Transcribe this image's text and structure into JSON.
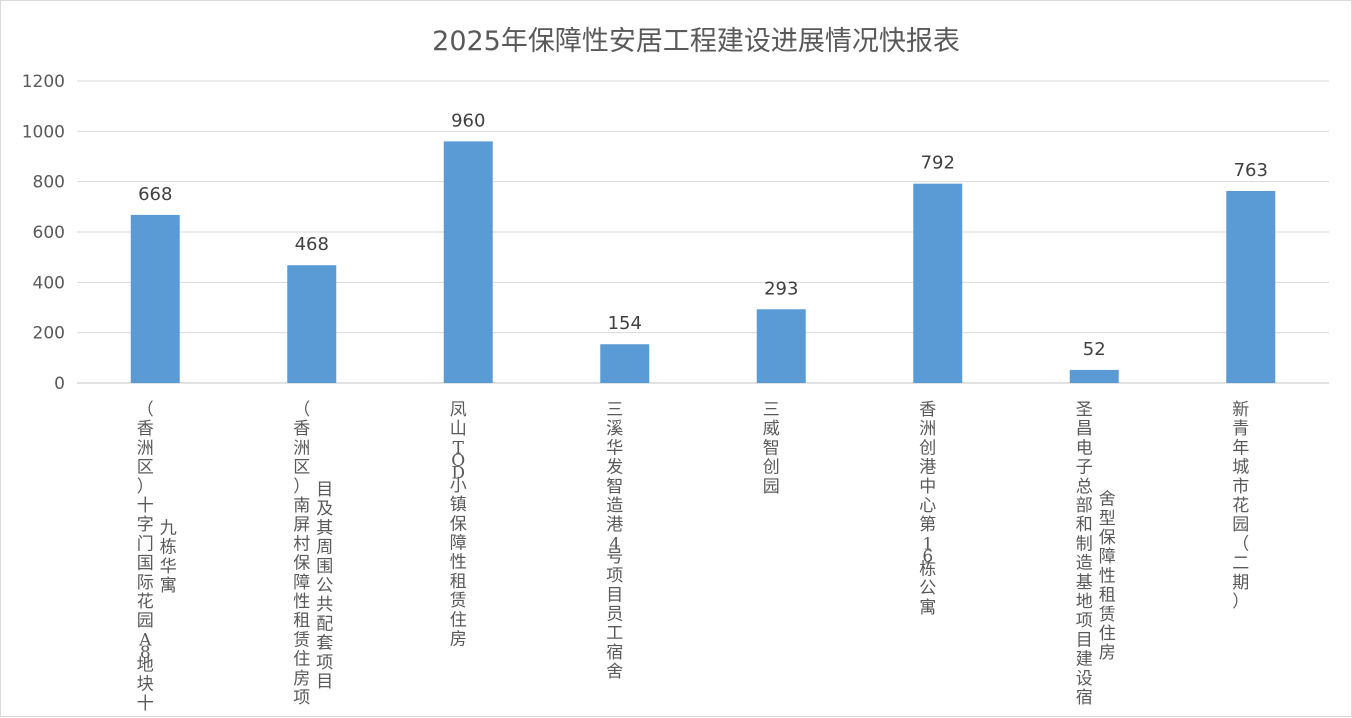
{
  "chart_data": {
    "type": "bar",
    "title": "2025年保障性安居工程建设进展情况快报表",
    "xlabel": "",
    "ylabel": "",
    "ylim": [
      0,
      1200
    ],
    "yticks": [
      0,
      200,
      400,
      600,
      800,
      1000,
      1200
    ],
    "grid": true,
    "legend": "none",
    "bar_color": "#5b9bd5",
    "categories": [
      {
        "lines": [
          "（香洲区）十字门国际花园A8地块十",
          "九栋华寓"
        ]
      },
      {
        "lines": [
          "（香洲区）南屏村保障性租赁住房项",
          "目及其周围公共配套项目"
        ]
      },
      {
        "lines": [
          "凤山TOD小镇保障性租赁住房"
        ]
      },
      {
        "lines": [
          "三溪华发智造港4号项目员工宿舍"
        ]
      },
      {
        "lines": [
          "三威智创园"
        ]
      },
      {
        "lines": [
          "香洲创港中心第16栋公寓"
        ]
      },
      {
        "lines": [
          "圣昌电子总部和制造基地项目建设宿",
          "舍型保障性租赁住房"
        ]
      },
      {
        "lines": [
          "新青年城市花园（二期）"
        ]
      }
    ],
    "values": [
      668,
      468,
      960,
      154,
      293,
      792,
      52,
      763
    ]
  }
}
